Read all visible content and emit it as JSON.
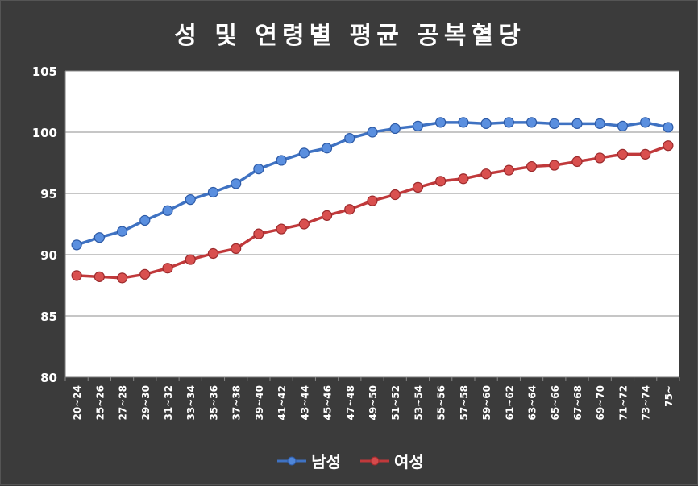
{
  "chart_data": {
    "type": "line",
    "title": "성 및 연령별 평균 공복혈당",
    "categories": [
      "20~24",
      "25~26",
      "27~28",
      "29~30",
      "31~32",
      "33~34",
      "35~36",
      "37~38",
      "39~40",
      "41~42",
      "43~44",
      "45~46",
      "47~48",
      "49~50",
      "51~52",
      "53~54",
      "55~56",
      "57~58",
      "59~60",
      "61~62",
      "63~64",
      "65~66",
      "67~68",
      "69~70",
      "71~72",
      "73~74",
      "75~"
    ],
    "ylim": [
      80,
      105
    ],
    "yticks": [
      "80",
      "85",
      "90",
      "95",
      "100",
      "105"
    ],
    "grid": true,
    "legend_position": "bottom",
    "series": [
      {
        "name": "남성",
        "color": "#3f72c2",
        "values": [
          90.8,
          91.4,
          91.9,
          92.8,
          93.6,
          94.5,
          95.1,
          95.8,
          97.0,
          97.7,
          98.3,
          98.7,
          99.5,
          100.0,
          100.3,
          100.5,
          100.8,
          100.8,
          100.7,
          100.8,
          100.8,
          100.7,
          100.7,
          100.7,
          100.5,
          100.8,
          100.4
        ]
      },
      {
        "name": "여성",
        "color": "#c0393b",
        "values": [
          88.3,
          88.2,
          88.1,
          88.4,
          88.9,
          89.6,
          90.1,
          90.5,
          91.7,
          92.1,
          92.5,
          93.2,
          93.7,
          94.4,
          94.9,
          95.5,
          96.0,
          96.2,
          96.6,
          96.9,
          97.2,
          97.3,
          97.6,
          97.9,
          98.2,
          98.2,
          98.9
        ]
      }
    ]
  }
}
